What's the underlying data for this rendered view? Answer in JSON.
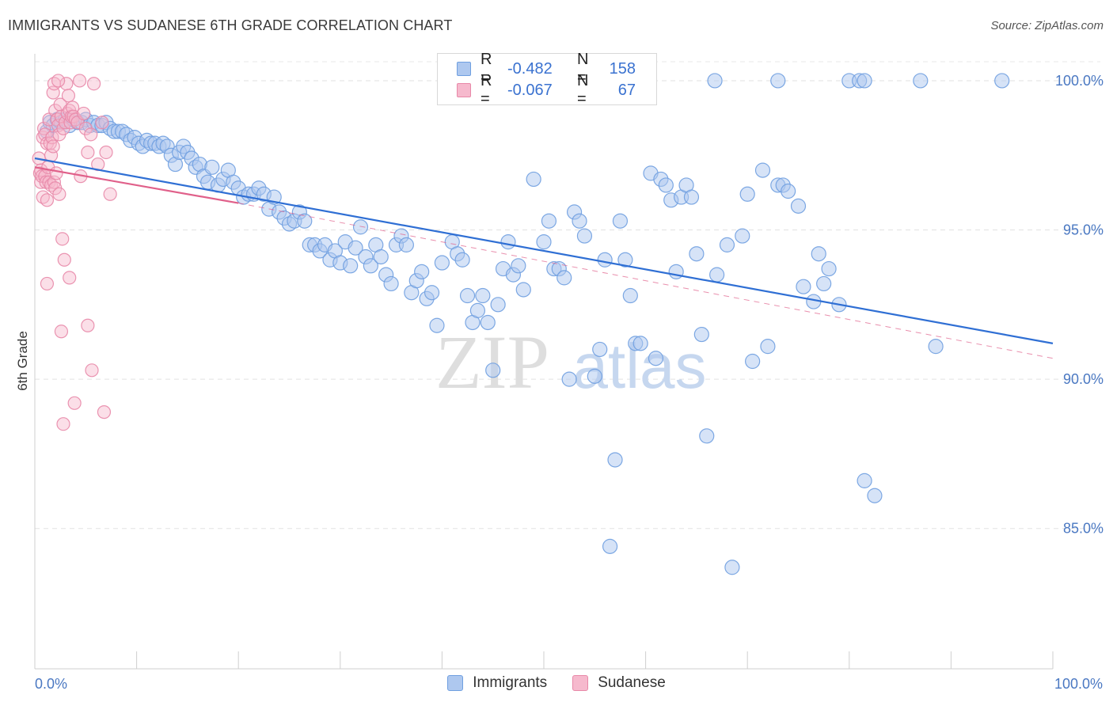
{
  "title": "IMMIGRANTS VS SUDANESE 6TH GRADE CORRELATION CHART",
  "source": "Source: ZipAtlas.com",
  "watermark": {
    "zip": "ZIP",
    "atlas": "atlas"
  },
  "legend": {
    "rows": [
      {
        "r_label": "R =",
        "r_value": "-0.482",
        "n_label": "N =",
        "n_value": "158",
        "fill": "#aec8ef",
        "stroke": "#6f9fe0"
      },
      {
        "r_label": "R =",
        "r_value": "-0.067",
        "n_label": "N =",
        "n_value": "67",
        "fill": "#f6b9cd",
        "stroke": "#e888a8"
      }
    ]
  },
  "bottom_legend": [
    {
      "label": "Immigrants",
      "fill": "#aec8ef",
      "stroke": "#6f9fe0"
    },
    {
      "label": "Sudanese",
      "fill": "#f6b9cd",
      "stroke": "#e888a8"
    }
  ],
  "chart_data": {
    "type": "scatter",
    "title": "IMMIGRANTS VS SUDANESE 6TH GRADE CORRELATION CHART",
    "xlabel": "",
    "ylabel": "6th Grade",
    "xlim": [
      0,
      100
    ],
    "ylim": [
      80.3,
      100.9
    ],
    "x_tick_labels": [
      "0.0%",
      "100.0%"
    ],
    "y_ticks": [
      100,
      95,
      90,
      85
    ],
    "y_tick_labels": [
      "100.0%",
      "95.0%",
      "90.0%",
      "85.0%"
    ],
    "grid": true,
    "series": [
      {
        "name": "Immigrants",
        "color": "#6f9fe0",
        "fill": "#aec8ef",
        "trend": {
          "x": [
            0,
            100
          ],
          "y": [
            97.4,
            91.2
          ],
          "style": "solid",
          "color": "#2f6fd4"
        },
        "points": [
          [
            1.2,
            98.3
          ],
          [
            1.5,
            98.6
          ],
          [
            1.8,
            98.5
          ],
          [
            2.2,
            98.7
          ],
          [
            2.6,
            98.6
          ],
          [
            3.0,
            98.7
          ],
          [
            3.4,
            98.5
          ],
          [
            3.8,
            98.7
          ],
          [
            4.2,
            98.6
          ],
          [
            4.6,
            98.6
          ],
          [
            5.0,
            98.7
          ],
          [
            5.4,
            98.5
          ],
          [
            5.8,
            98.6
          ],
          [
            6.2,
            98.5
          ],
          [
            6.6,
            98.5
          ],
          [
            7.0,
            98.6
          ],
          [
            7.4,
            98.4
          ],
          [
            7.8,
            98.3
          ],
          [
            8.2,
            98.3
          ],
          [
            8.6,
            98.3
          ],
          [
            9.0,
            98.2
          ],
          [
            9.4,
            98.0
          ],
          [
            9.8,
            98.1
          ],
          [
            10.2,
            97.9
          ],
          [
            10.6,
            97.8
          ],
          [
            11.0,
            98.0
          ],
          [
            11.4,
            97.9
          ],
          [
            11.8,
            97.9
          ],
          [
            12.2,
            97.8
          ],
          [
            12.6,
            97.9
          ],
          [
            13.0,
            97.8
          ],
          [
            13.4,
            97.5
          ],
          [
            13.8,
            97.2
          ],
          [
            14.2,
            97.6
          ],
          [
            14.6,
            97.8
          ],
          [
            15.0,
            97.6
          ],
          [
            15.4,
            97.4
          ],
          [
            15.8,
            97.1
          ],
          [
            16.2,
            97.2
          ],
          [
            16.6,
            96.8
          ],
          [
            17.0,
            96.6
          ],
          [
            17.4,
            97.1
          ],
          [
            18.0,
            96.5
          ],
          [
            18.5,
            96.7
          ],
          [
            19.0,
            97.0
          ],
          [
            19.5,
            96.6
          ],
          [
            20.0,
            96.4
          ],
          [
            20.5,
            96.1
          ],
          [
            21.0,
            96.2
          ],
          [
            21.5,
            96.2
          ],
          [
            22.0,
            96.4
          ],
          [
            22.5,
            96.2
          ],
          [
            23.0,
            95.7
          ],
          [
            23.5,
            96.1
          ],
          [
            24.0,
            95.6
          ],
          [
            24.5,
            95.4
          ],
          [
            25.0,
            95.2
          ],
          [
            25.5,
            95.3
          ],
          [
            26.0,
            95.6
          ],
          [
            26.5,
            95.3
          ],
          [
            27.0,
            94.5
          ],
          [
            27.5,
            94.5
          ],
          [
            28.0,
            94.3
          ],
          [
            28.5,
            94.5
          ],
          [
            29.0,
            94.0
          ],
          [
            29.5,
            94.3
          ],
          [
            30.0,
            93.9
          ],
          [
            30.5,
            94.6
          ],
          [
            31.0,
            93.8
          ],
          [
            31.5,
            94.4
          ],
          [
            32.0,
            95.1
          ],
          [
            32.5,
            94.1
          ],
          [
            33.0,
            93.8
          ],
          [
            33.5,
            94.5
          ],
          [
            34.0,
            94.1
          ],
          [
            34.5,
            93.5
          ],
          [
            35.0,
            93.2
          ],
          [
            35.5,
            94.5
          ],
          [
            36.0,
            94.8
          ],
          [
            36.5,
            94.5
          ],
          [
            37.0,
            92.9
          ],
          [
            37.5,
            93.3
          ],
          [
            38.0,
            93.6
          ],
          [
            38.5,
            92.7
          ],
          [
            39.0,
            92.9
          ],
          [
            39.5,
            91.8
          ],
          [
            40.0,
            93.9
          ],
          [
            41.0,
            94.6
          ],
          [
            41.5,
            94.2
          ],
          [
            42.0,
            94.0
          ],
          [
            42.5,
            92.8
          ],
          [
            43.0,
            91.9
          ],
          [
            43.5,
            92.3
          ],
          [
            44.0,
            92.8
          ],
          [
            44.5,
            91.9
          ],
          [
            45.0,
            90.3
          ],
          [
            45.5,
            92.5
          ],
          [
            46.0,
            93.7
          ],
          [
            46.5,
            94.6
          ],
          [
            47.0,
            93.5
          ],
          [
            47.5,
            93.8
          ],
          [
            48.0,
            93.0
          ],
          [
            49.0,
            96.7
          ],
          [
            50.0,
            94.6
          ],
          [
            50.5,
            95.3
          ],
          [
            51.0,
            93.7
          ],
          [
            51.5,
            93.7
          ],
          [
            52.0,
            93.4
          ],
          [
            52.5,
            90.0
          ],
          [
            53.0,
            95.6
          ],
          [
            53.5,
            95.3
          ],
          [
            54.0,
            94.8
          ],
          [
            55.0,
            90.1
          ],
          [
            55.5,
            91.0
          ],
          [
            56.0,
            94.0
          ],
          [
            56.5,
            84.4
          ],
          [
            57.0,
            87.3
          ],
          [
            57.5,
            95.3
          ],
          [
            58.0,
            94.0
          ],
          [
            58.5,
            92.8
          ],
          [
            59.0,
            91.2
          ],
          [
            59.5,
            91.2
          ],
          [
            60.5,
            96.9
          ],
          [
            61.0,
            90.7
          ],
          [
            61.5,
            96.7
          ],
          [
            62.0,
            96.5
          ],
          [
            62.5,
            96.0
          ],
          [
            63.0,
            93.6
          ],
          [
            63.5,
            96.1
          ],
          [
            64.0,
            96.5
          ],
          [
            64.5,
            96.1
          ],
          [
            65.0,
            94.2
          ],
          [
            65.5,
            91.5
          ],
          [
            66.0,
            88.1
          ],
          [
            66.8,
            100.0
          ],
          [
            67.0,
            93.5
          ],
          [
            68.0,
            94.5
          ],
          [
            68.5,
            83.7
          ],
          [
            69.5,
            94.8
          ],
          [
            70.0,
            96.2
          ],
          [
            70.5,
            90.6
          ],
          [
            71.5,
            97.0
          ],
          [
            72.0,
            91.1
          ],
          [
            73.0,
            100.0
          ],
          [
            73.0,
            96.5
          ],
          [
            73.5,
            96.5
          ],
          [
            74.0,
            96.3
          ],
          [
            75.0,
            95.8
          ],
          [
            75.5,
            93.1
          ],
          [
            76.5,
            92.6
          ],
          [
            77.0,
            94.2
          ],
          [
            77.5,
            93.2
          ],
          [
            78.0,
            93.7
          ],
          [
            79.0,
            92.5
          ],
          [
            80.0,
            100.0
          ],
          [
            81.0,
            100.0
          ],
          [
            81.5,
            86.6
          ],
          [
            81.5,
            100.0
          ],
          [
            82.5,
            86.1
          ],
          [
            87.0,
            100.0
          ],
          [
            88.5,
            91.1
          ],
          [
            95.0,
            100.0
          ]
        ]
      },
      {
        "name": "Sudanese",
        "color": "#e888a8",
        "fill": "#f6b9cd",
        "trend": {
          "x": [
            0,
            20
          ],
          "y": [
            97.1,
            95.9
          ],
          "style": "solid",
          "color": "#e0608a",
          "extension": {
            "x": [
              20,
              100
            ],
            "y": [
              95.9,
              90.7
            ],
            "style": "dashed"
          }
        },
        "points": [
          [
            0.4,
            97.4
          ],
          [
            0.5,
            96.9
          ],
          [
            0.6,
            96.6
          ],
          [
            0.6,
            97.0
          ],
          [
            0.7,
            96.8
          ],
          [
            0.8,
            96.1
          ],
          [
            0.8,
            98.1
          ],
          [
            0.9,
            98.4
          ],
          [
            1.0,
            98.2
          ],
          [
            1.0,
            96.8
          ],
          [
            1.1,
            96.6
          ],
          [
            1.2,
            97.9
          ],
          [
            1.2,
            96.0
          ],
          [
            1.3,
            97.1
          ],
          [
            1.4,
            96.6
          ],
          [
            1.4,
            98.7
          ],
          [
            1.5,
            97.9
          ],
          [
            1.6,
            96.5
          ],
          [
            1.6,
            97.5
          ],
          [
            1.7,
            98.1
          ],
          [
            1.8,
            97.8
          ],
          [
            1.8,
            99.6
          ],
          [
            1.9,
            96.6
          ],
          [
            2.0,
            99.0
          ],
          [
            2.0,
            96.4
          ],
          [
            2.1,
            96.9
          ],
          [
            2.2,
            98.7
          ],
          [
            2.3,
            98.5
          ],
          [
            2.4,
            96.2
          ],
          [
            2.4,
            98.2
          ],
          [
            2.5,
            99.2
          ],
          [
            2.6,
            98.8
          ],
          [
            2.7,
            94.7
          ],
          [
            2.8,
            98.4
          ],
          [
            2.9,
            94.0
          ],
          [
            3.0,
            98.6
          ],
          [
            3.1,
            99.9
          ],
          [
            3.2,
            98.9
          ],
          [
            3.3,
            99.5
          ],
          [
            3.4,
            99.0
          ],
          [
            3.5,
            98.6
          ],
          [
            3.6,
            98.8
          ],
          [
            3.7,
            99.1
          ],
          [
            3.8,
            98.8
          ],
          [
            4.0,
            98.7
          ],
          [
            4.2,
            98.6
          ],
          [
            4.5,
            96.8
          ],
          [
            4.8,
            98.9
          ],
          [
            5.0,
            98.4
          ],
          [
            5.2,
            97.6
          ],
          [
            5.5,
            98.2
          ],
          [
            5.8,
            99.9
          ],
          [
            6.2,
            97.2
          ],
          [
            6.6,
            98.6
          ],
          [
            7.0,
            97.6
          ],
          [
            7.4,
            96.2
          ],
          [
            1.2,
            93.2
          ],
          [
            3.4,
            93.4
          ],
          [
            2.6,
            91.6
          ],
          [
            5.2,
            91.8
          ],
          [
            5.6,
            90.3
          ],
          [
            3.9,
            89.2
          ],
          [
            2.8,
            88.5
          ],
          [
            6.8,
            88.9
          ],
          [
            1.9,
            99.9
          ],
          [
            2.3,
            100.0
          ],
          [
            4.4,
            100.0
          ]
        ]
      }
    ]
  }
}
